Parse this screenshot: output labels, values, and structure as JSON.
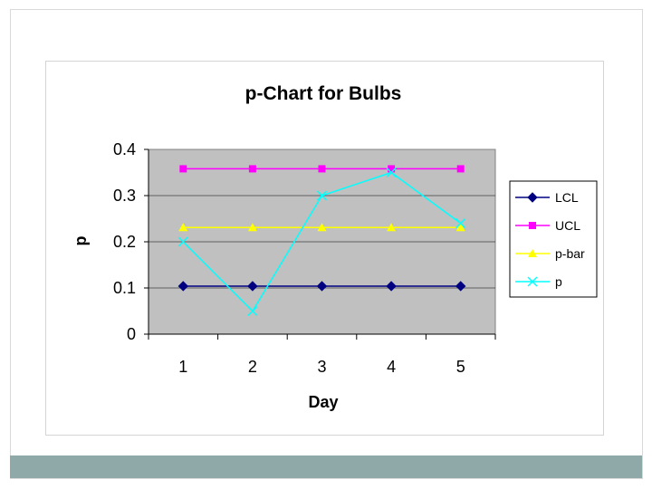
{
  "chart_data": {
    "type": "line",
    "title": "p-Chart for Bulbs",
    "xlabel": "Day",
    "ylabel": "p",
    "categories": [
      "1",
      "2",
      "3",
      "4",
      "5"
    ],
    "ylim": [
      0,
      0.4
    ],
    "yticks": [
      "0",
      "0.1",
      "0.2",
      "0.3",
      "0.4"
    ],
    "grid": "horizontal major gridlines",
    "legend_position": "right",
    "plot_background": "#c0c0c0",
    "series": [
      {
        "name": "LCL",
        "values": [
          0.104,
          0.104,
          0.104,
          0.104,
          0.104
        ],
        "color": "#000080",
        "marker": "diamond"
      },
      {
        "name": "UCL",
        "values": [
          0.358,
          0.358,
          0.358,
          0.358,
          0.358
        ],
        "color": "#ff00ff",
        "marker": "square"
      },
      {
        "name": "p-bar",
        "values": [
          0.231,
          0.231,
          0.231,
          0.231,
          0.231
        ],
        "color": "#ffff00",
        "marker": "triangle"
      },
      {
        "name": "p",
        "values": [
          0.2,
          0.05,
          0.3,
          0.35,
          0.24
        ],
        "color": "#00ffff",
        "marker": "x"
      }
    ]
  }
}
